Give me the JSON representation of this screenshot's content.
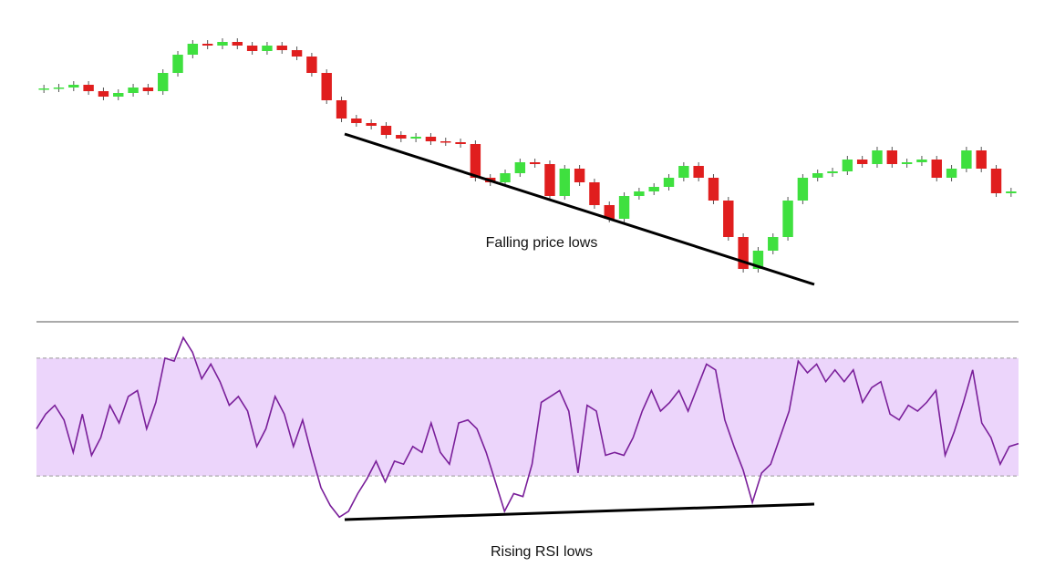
{
  "chart_data": [
    {
      "type": "candlestick",
      "annotation": "Falling price lows",
      "up_color": "#3fe03f",
      "down_color": "#e01e1e",
      "ylim": [
        0,
        300
      ],
      "open": [
        232,
        233,
        234,
        237,
        230,
        224,
        228,
        234,
        230,
        250,
        270,
        282,
        280,
        284,
        280,
        274,
        280,
        275,
        268,
        250,
        220,
        200,
        195,
        192,
        182,
        178,
        180,
        175,
        174,
        172,
        135,
        130,
        140,
        152,
        150,
        115,
        145,
        130,
        105,
        90,
        115,
        120,
        125,
        135,
        148,
        135,
        110,
        70,
        35,
        55,
        70,
        110,
        135,
        140,
        142,
        155,
        150,
        165,
        150,
        152,
        155,
        135,
        145,
        165,
        145,
        118
      ],
      "high": [
        237,
        238,
        241,
        241,
        234,
        232,
        238,
        238,
        254,
        274,
        286,
        286,
        288,
        288,
        284,
        284,
        284,
        279,
        272,
        254,
        224,
        204,
        199,
        196,
        186,
        184,
        184,
        179,
        178,
        176,
        139,
        144,
        156,
        156,
        154,
        149,
        149,
        134,
        109,
        119,
        124,
        129,
        139,
        152,
        152,
        139,
        114,
        74,
        59,
        74,
        114,
        139,
        144,
        146,
        159,
        159,
        169,
        169,
        156,
        159,
        159,
        149,
        169,
        169,
        149,
        124
      ],
      "low": [
        228,
        229,
        230,
        226,
        220,
        220,
        224,
        226,
        226,
        246,
        266,
        276,
        276,
        276,
        270,
        270,
        271,
        264,
        246,
        216,
        196,
        191,
        188,
        178,
        174,
        174,
        171,
        170,
        168,
        131,
        126,
        126,
        136,
        146,
        111,
        111,
        126,
        101,
        86,
        86,
        111,
        116,
        121,
        131,
        131,
        106,
        66,
        31,
        31,
        51,
        66,
        106,
        131,
        136,
        138,
        146,
        146,
        146,
        146,
        148,
        131,
        131,
        141,
        141,
        114,
        114
      ],
      "close": [
        233,
        234,
        237,
        230,
        224,
        228,
        234,
        230,
        250,
        270,
        282,
        280,
        284,
        280,
        274,
        280,
        275,
        268,
        250,
        220,
        200,
        195,
        192,
        182,
        178,
        180,
        175,
        174,
        172,
        135,
        130,
        140,
        152,
        150,
        115,
        145,
        130,
        105,
        90,
        115,
        120,
        125,
        135,
        148,
        135,
        110,
        70,
        35,
        55,
        70,
        110,
        135,
        140,
        142,
        155,
        150,
        165,
        150,
        152,
        155,
        135,
        145,
        165,
        145,
        118,
        120
      ]
    },
    {
      "type": "line",
      "annotation": "Rising RSI lows",
      "color": "#7a1f9a",
      "band": [
        30,
        70
      ],
      "band_color": "#ecd5fb",
      "ylim": [
        0,
        100
      ],
      "values": [
        46,
        51,
        54,
        49,
        38,
        51,
        37,
        43,
        54,
        48,
        57,
        59,
        46,
        55,
        70,
        69,
        77,
        72,
        63,
        68,
        62,
        54,
        57,
        52,
        40,
        46,
        57,
        51,
        40,
        49,
        37,
        26,
        20,
        16,
        18,
        24,
        29,
        35,
        28,
        35,
        34,
        40,
        38,
        48,
        38,
        34,
        48,
        49,
        46,
        38,
        28,
        18,
        24,
        23,
        34,
        55,
        57,
        59,
        52,
        31,
        54,
        52,
        37,
        38,
        37,
        43,
        52,
        59,
        52,
        55,
        59,
        52,
        60,
        68,
        66,
        49,
        40,
        32,
        21,
        31,
        34,
        43,
        52,
        69,
        65,
        68,
        62,
        66,
        62,
        66,
        55,
        60,
        62,
        51,
        49,
        54,
        52,
        55,
        59,
        37,
        45,
        55,
        66,
        48,
        43,
        34,
        40,
        41
      ]
    }
  ]
}
